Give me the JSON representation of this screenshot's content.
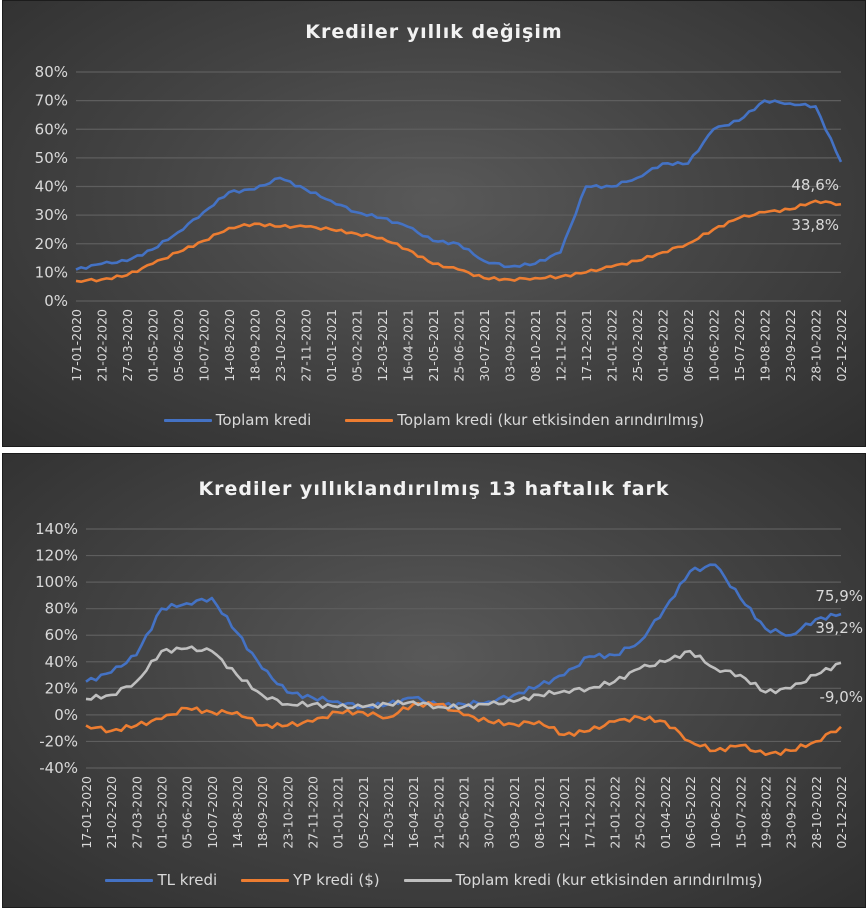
{
  "chart_data": [
    {
      "type": "line",
      "title": "Krediler yıllık değişim",
      "xlabel": "",
      "ylabel": "",
      "ylim": [
        0,
        80
      ],
      "yticks": [
        "0%",
        "10%",
        "20%",
        "30%",
        "40%",
        "50%",
        "60%",
        "70%",
        "80%"
      ],
      "grid": true,
      "legend_position": "bottom",
      "categories": [
        "17-01-2020",
        "21-02-2020",
        "27-03-2020",
        "01-05-2020",
        "05-06-2020",
        "10-07-2020",
        "14-08-2020",
        "18-09-2020",
        "23-10-2020",
        "27-11-2020",
        "01-01-2021",
        "05-02-2021",
        "12-03-2021",
        "16-04-2021",
        "21-05-2021",
        "25-06-2021",
        "30-07-2021",
        "03-09-2021",
        "08-10-2021",
        "12-11-2021",
        "17-12-2021",
        "21-01-2022",
        "25-02-2022",
        "01-04-2022",
        "06-05-2022",
        "10-06-2022",
        "15-07-2022",
        "19-08-2022",
        "23-09-2022",
        "28-10-2022",
        "02-12-2022"
      ],
      "series": [
        {
          "name": "Toplam kredi",
          "color": "#4472c4",
          "values": [
            11,
            13,
            14,
            18,
            24,
            31,
            38,
            39,
            43,
            39,
            35,
            31,
            29,
            26,
            21,
            20,
            14,
            12,
            13,
            17,
            40,
            40,
            43,
            48,
            48,
            60,
            63,
            70,
            69,
            68,
            48.6
          ],
          "end_label": "48,6%"
        },
        {
          "name": "Toplam kredi (kur etkisinden arındırılmış)",
          "color": "#ed7d31",
          "values": [
            7,
            7.5,
            9,
            13,
            17,
            21,
            25.5,
            27,
            26,
            26,
            25,
            23.5,
            22,
            18,
            13,
            11,
            8,
            7.5,
            8,
            8.5,
            10,
            12,
            14,
            17,
            20,
            25,
            29,
            31,
            32,
            35,
            33.8
          ],
          "end_label": "33,8%"
        }
      ],
      "annotations": [
        "48,6%",
        "33,8%"
      ]
    },
    {
      "type": "line",
      "title": "Krediler yıllıklandırılmış 13 haftalık fark",
      "xlabel": "",
      "ylabel": "",
      "ylim": [
        -40,
        140
      ],
      "yticks": [
        "-40%",
        "-20%",
        "0%",
        "20%",
        "40%",
        "60%",
        "80%",
        "100%",
        "120%",
        "140%"
      ],
      "grid": true,
      "legend_position": "bottom",
      "categories": [
        "17-01-2020",
        "21-02-2020",
        "27-03-2020",
        "01-05-2020",
        "05-06-2020",
        "10-07-2020",
        "14-08-2020",
        "18-09-2020",
        "23-10-2020",
        "27-11-2020",
        "01-01-2021",
        "05-02-2021",
        "12-03-2021",
        "16-04-2021",
        "21-05-2021",
        "25-06-2021",
        "30-07-2021",
        "03-09-2021",
        "08-10-2021",
        "12-11-2021",
        "17-12-2021",
        "21-01-2022",
        "25-02-2022",
        "01-04-2022",
        "06-05-2022",
        "10-06-2022",
        "15-07-2022",
        "19-08-2022",
        "23-09-2022",
        "28-10-2022",
        "02-12-2022"
      ],
      "series": [
        {
          "name": "TL kredi",
          "color": "#4472c4",
          "values": [
            25,
            32,
            45,
            80,
            84,
            88,
            62,
            35,
            17,
            13,
            10,
            6,
            8,
            13,
            7,
            8,
            10,
            15,
            22,
            30,
            44,
            45,
            55,
            80,
            108,
            113,
            88,
            65,
            60,
            72,
            75.9
          ],
          "end_label": "75,9%"
        },
        {
          "name": "YP kredi ($)",
          "color": "#ed7d31",
          "values": [
            -8,
            -12,
            -8,
            -3,
            5,
            2,
            2,
            -8,
            -8,
            -5,
            2,
            2,
            -2,
            8,
            8,
            0,
            -5,
            -7,
            -5,
            -15,
            -12,
            -5,
            -2,
            -5,
            -20,
            -27,
            -23,
            -30,
            -27,
            -20,
            -9.0
          ],
          "end_label": "-9,0%"
        },
        {
          "name": "Toplam kredi (kur etkisinden arındırılmış)",
          "color": "#bfbfbf",
          "values": [
            12,
            15,
            25,
            48,
            50,
            48,
            30,
            15,
            8,
            8,
            6,
            6,
            8,
            10,
            6,
            6,
            8,
            10,
            15,
            18,
            20,
            25,
            35,
            40,
            48,
            35,
            30,
            17,
            20,
            30,
            39.2
          ],
          "end_label": "39,2%"
        }
      ],
      "annotations": [
        "75,9%",
        "39,2%",
        "-9,0%"
      ]
    }
  ],
  "chart1": {
    "title": "Krediler yıllık değişim",
    "legend": [
      "Toplam kredi",
      "Toplam kredi (kur etkisinden arındırılmış)"
    ]
  },
  "chart2": {
    "title": "Krediler yıllıklandırılmış 13 haftalık fark",
    "legend": [
      "TL kredi",
      "YP kredi ($)",
      "Toplam kredi (kur etkisinden arındırılmış)"
    ]
  },
  "colors": {
    "blue": "#4472c4",
    "orange": "#ed7d31",
    "gray": "#bfbfbf",
    "text": "#d9d9d9",
    "grid": "#5e5e5e"
  }
}
